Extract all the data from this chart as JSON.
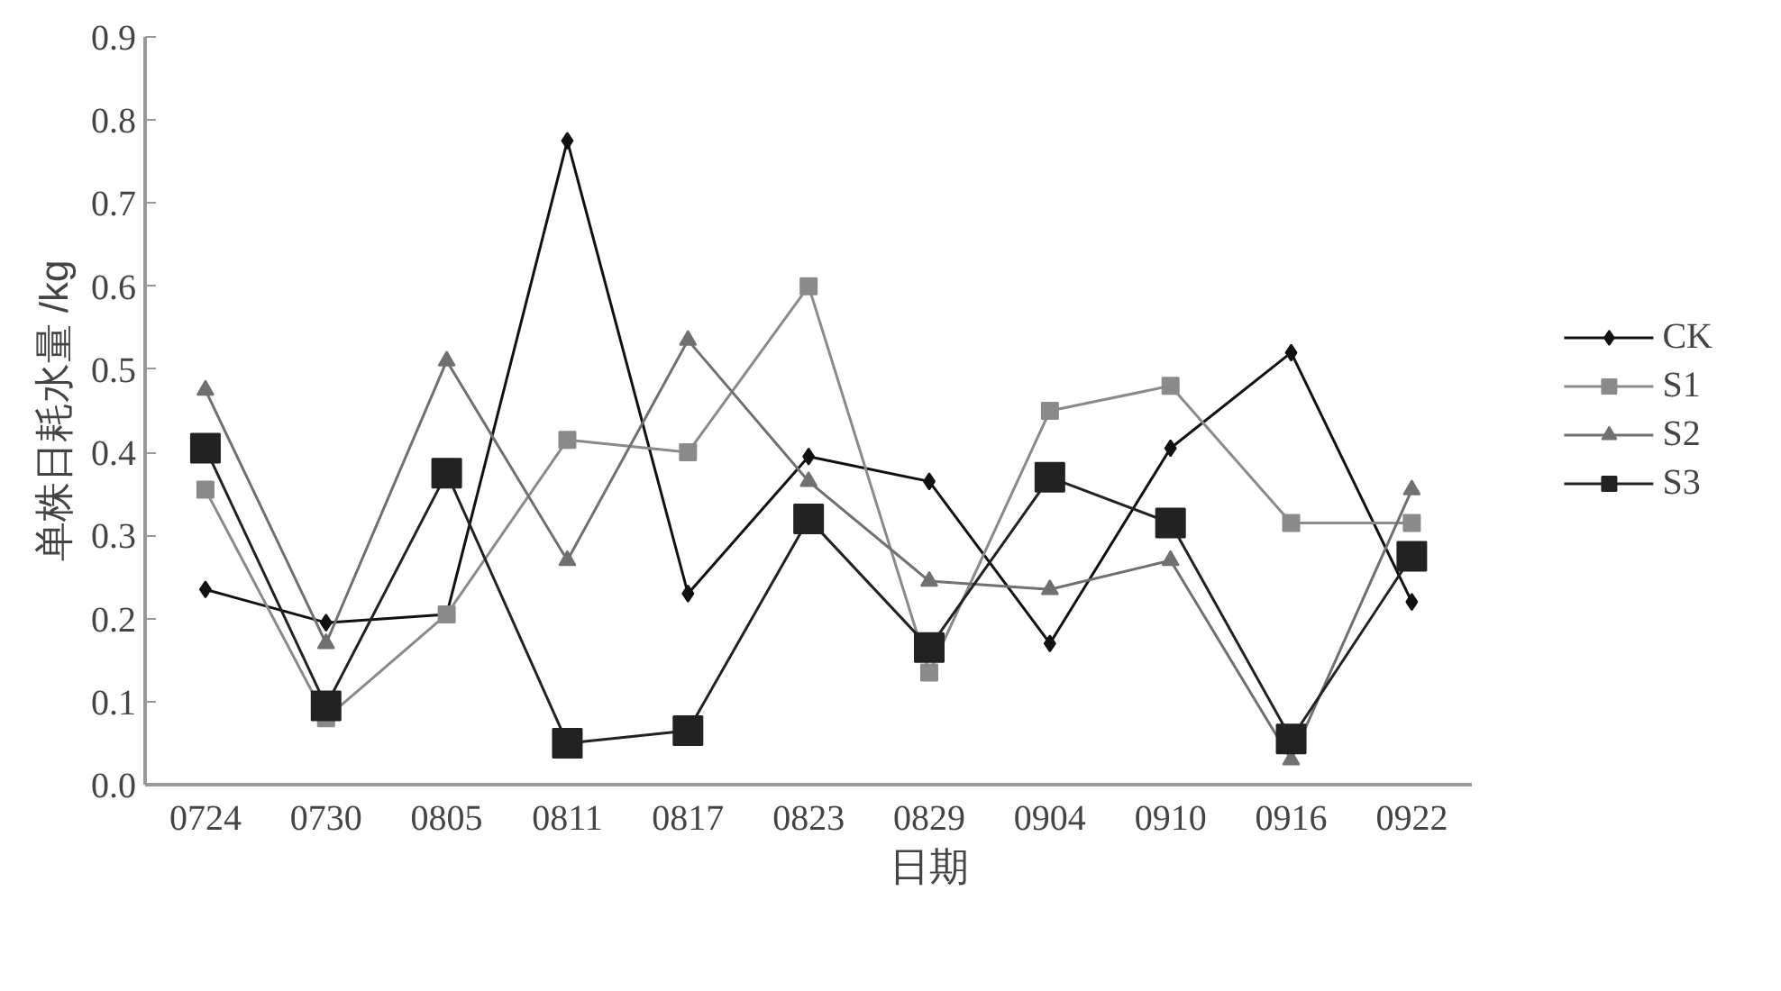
{
  "chart_data": {
    "type": "line",
    "xlabel": "日期",
    "ylabel": "单株日耗水量 /kg",
    "categories": [
      "0724",
      "0730",
      "0805",
      "0811",
      "0817",
      "0823",
      "0829",
      "0904",
      "0910",
      "0916",
      "0922"
    ],
    "ylim": [
      0,
      0.9
    ],
    "yticks": [
      {
        "value": 0,
        "label": "0.0"
      },
      0.1,
      0.2,
      0.3,
      0.4,
      0.5,
      0.6,
      0.7,
      0.8,
      0.9
    ],
    "grid": false,
    "legend": "right",
    "series": [
      {
        "name": "CK",
        "color": "#111111",
        "marker": "diamond",
        "values": [
          0.235,
          0.195,
          0.205,
          0.775,
          0.23,
          0.395,
          0.365,
          0.17,
          0.405,
          0.52,
          0.22
        ]
      },
      {
        "name": "S1",
        "color": "#8a8a8a",
        "marker": "square",
        "values": [
          0.355,
          0.08,
          0.205,
          0.415,
          0.4,
          0.6,
          0.135,
          0.45,
          0.48,
          0.315,
          0.315
        ]
      },
      {
        "name": "S2",
        "color": "#707070",
        "marker": "triangle",
        "values": [
          0.475,
          0.17,
          0.51,
          0.27,
          0.535,
          0.365,
          0.245,
          0.235,
          0.27,
          0.03,
          0.355
        ]
      },
      {
        "name": "S3",
        "color": "#222222",
        "marker": "square",
        "values": [
          0.405,
          0.095,
          0.375,
          0.05,
          0.065,
          0.32,
          0.165,
          0.37,
          0.315,
          0.055,
          0.275
        ]
      }
    ]
  }
}
